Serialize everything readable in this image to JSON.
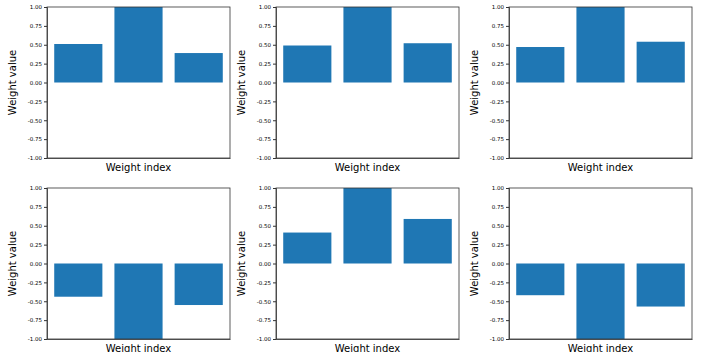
{
  "chart_data": [
    {
      "type": "bar",
      "x_label": "Weight index",
      "y_label": "Weight value",
      "categories": [
        null,
        null,
        null
      ],
      "values": [
        0.51,
        1.0,
        0.39
      ],
      "color": "#1f77b4",
      "ylim": [
        -1,
        1
      ],
      "yticks": [
        {
          "value": -1,
          "label": "-1.00"
        },
        {
          "value": -0.75,
          "label": "-0.75"
        },
        {
          "value": -0.5,
          "label": "-0.50"
        },
        {
          "value": -0.25,
          "label": "-0.25"
        },
        {
          "value": 0,
          "label": "0.00"
        },
        {
          "value": 0.25,
          "label": "0.25"
        },
        {
          "value": 0.5,
          "label": "0.50"
        },
        {
          "value": 0.75,
          "label": "0.75"
        },
        {
          "value": 1,
          "label": "1.00"
        }
      ],
      "tick_labels": "y",
      "grid": false
    },
    {
      "type": "bar",
      "x_label": "Weight index",
      "y_label": "Weight value",
      "categories": [
        null,
        null,
        null
      ],
      "values": [
        0.49,
        1.0,
        0.52
      ],
      "color": "#1f77b4",
      "ylim": [
        -1,
        1
      ],
      "yticks": [
        {
          "value": -1,
          "label": "-1.00"
        },
        {
          "value": -0.75,
          "label": "-0.75"
        },
        {
          "value": -0.5,
          "label": "-0.50"
        },
        {
          "value": -0.25,
          "label": "-0.25"
        },
        {
          "value": 0,
          "label": "0.00"
        },
        {
          "value": 0.25,
          "label": "0.25"
        },
        {
          "value": 0.5,
          "label": "0.50"
        },
        {
          "value": 0.75,
          "label": "0.75"
        },
        {
          "value": 1,
          "label": "1.00"
        }
      ],
      "tick_labels": "y",
      "grid": false
    },
    {
      "type": "bar",
      "x_label": "Weight index",
      "y_label": "Weight value",
      "categories": [
        null,
        null,
        null
      ],
      "values": [
        0.47,
        1.0,
        0.54
      ],
      "color": "#1f77b4",
      "ylim": [
        -1,
        1
      ],
      "yticks": [
        {
          "value": -1,
          "label": "-1.00"
        },
        {
          "value": -0.75,
          "label": "-0.75"
        },
        {
          "value": -0.5,
          "label": "-0.50"
        },
        {
          "value": -0.25,
          "label": "-0.25"
        },
        {
          "value": 0,
          "label": "0.00"
        },
        {
          "value": 0.25,
          "label": "0.25"
        },
        {
          "value": 0.5,
          "label": "0.50"
        },
        {
          "value": 0.75,
          "label": "0.75"
        },
        {
          "value": 1,
          "label": "1.00"
        }
      ],
      "tick_labels": "y",
      "grid": false
    },
    {
      "type": "bar",
      "x_label": "Weight index",
      "y_label": "Weight value",
      "categories": [
        null,
        null,
        null
      ],
      "values": [
        -0.44,
        -1.0,
        -0.55
      ],
      "color": "#1f77b4",
      "ylim": [
        -1,
        1
      ],
      "yticks": [
        {
          "value": -1,
          "label": "-1.00"
        },
        {
          "value": -0.75,
          "label": "-0.75"
        },
        {
          "value": -0.5,
          "label": "-0.50"
        },
        {
          "value": -0.25,
          "label": "-0.25"
        },
        {
          "value": 0,
          "label": "0.00"
        },
        {
          "value": 0.25,
          "label": "0.25"
        },
        {
          "value": 0.5,
          "label": "0.50"
        },
        {
          "value": 0.75,
          "label": "0.75"
        },
        {
          "value": 1,
          "label": "1.00"
        }
      ],
      "tick_labels": "y",
      "grid": false
    },
    {
      "type": "bar",
      "x_label": "Weight index",
      "y_label": "Weight value",
      "categories": [
        null,
        null,
        null
      ],
      "values": [
        0.41,
        1.0,
        0.59
      ],
      "color": "#1f77b4",
      "ylim": [
        -1,
        1
      ],
      "yticks": [
        {
          "value": -1,
          "label": "-1.00"
        },
        {
          "value": -0.75,
          "label": "-0.75"
        },
        {
          "value": -0.5,
          "label": "-0.50"
        },
        {
          "value": -0.25,
          "label": "-0.25"
        },
        {
          "value": 0,
          "label": "0.00"
        },
        {
          "value": 0.25,
          "label": "0.25"
        },
        {
          "value": 0.5,
          "label": "0.50"
        },
        {
          "value": 0.75,
          "label": "0.75"
        },
        {
          "value": 1,
          "label": "1.00"
        }
      ],
      "tick_labels": "y",
      "grid": false
    },
    {
      "type": "bar",
      "x_label": "Weight index",
      "y_label": "Weight value",
      "categories": [
        null,
        null,
        null
      ],
      "values": [
        -0.42,
        -1.0,
        -0.57
      ],
      "color": "#1f77b4",
      "ylim": [
        -1,
        1
      ],
      "yticks": [
        {
          "value": -1,
          "label": "-1.00"
        },
        {
          "value": -0.75,
          "label": "-0.75"
        },
        {
          "value": -0.5,
          "label": "-0.50"
        },
        {
          "value": -0.25,
          "label": "-0.25"
        },
        {
          "value": 0,
          "label": "0.00"
        },
        {
          "value": 0.25,
          "label": "0.25"
        },
        {
          "value": 0.5,
          "label": "0.50"
        },
        {
          "value": 0.75,
          "label": "0.75"
        },
        {
          "value": 1,
          "label": "1.00"
        }
      ],
      "tick_labels": "y",
      "grid": false
    }
  ]
}
